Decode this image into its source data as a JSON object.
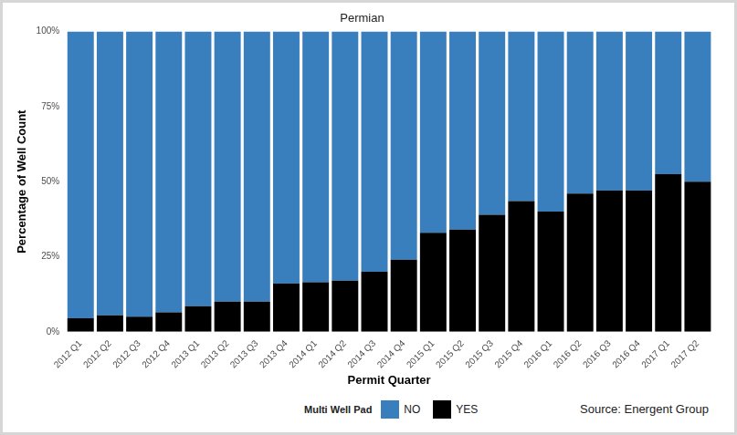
{
  "chart_data": {
    "type": "bar",
    "title": "Permian",
    "x_label": "Permit Quarter",
    "y_label": "Percentage of Well Count",
    "legend_title": "Multi Well Pad",
    "annotation": "Source: Energent Group",
    "stacked": true,
    "grid": false,
    "legend": "bottom",
    "categories": [
      "2012 Q1",
      "2012 Q2",
      "2012 Q3",
      "2012 Q4",
      "2013 Q1",
      "2013 Q2",
      "2013 Q3",
      "2013 Q4",
      "2014 Q1",
      "2014 Q2",
      "2014 Q3",
      "2014 Q4",
      "2015 Q1",
      "2015 Q2",
      "2015 Q3",
      "2015 Q4",
      "2016 Q1",
      "2016 Q2",
      "2016 Q3",
      "2016 Q4",
      "2017 Q1",
      "2017 Q2"
    ],
    "series": [
      {
        "name": "NO",
        "color": "#3a7fbd",
        "values": [
          95.5,
          94.5,
          95,
          93.5,
          91.5,
          90,
          90,
          84,
          83.5,
          83,
          80,
          76,
          67,
          66,
          61,
          56.5,
          60,
          54,
          53,
          53,
          47.5,
          50
        ]
      },
      {
        "name": "YES",
        "color": "#000000",
        "values": [
          4.5,
          5.5,
          5,
          6.5,
          8.5,
          10,
          10,
          16,
          16.5,
          17,
          20,
          24,
          33,
          34,
          39,
          43.5,
          40,
          46,
          47,
          47,
          52.5,
          50
        ]
      }
    ],
    "ylim": [
      0,
      100
    ],
    "yticks": [
      {
        "value": 0,
        "label": "0%"
      },
      {
        "value": 25,
        "label": "25%"
      },
      {
        "value": 50,
        "label": "50%"
      },
      {
        "value": 75,
        "label": "75%"
      },
      {
        "value": 100,
        "label": "100%"
      }
    ]
  }
}
